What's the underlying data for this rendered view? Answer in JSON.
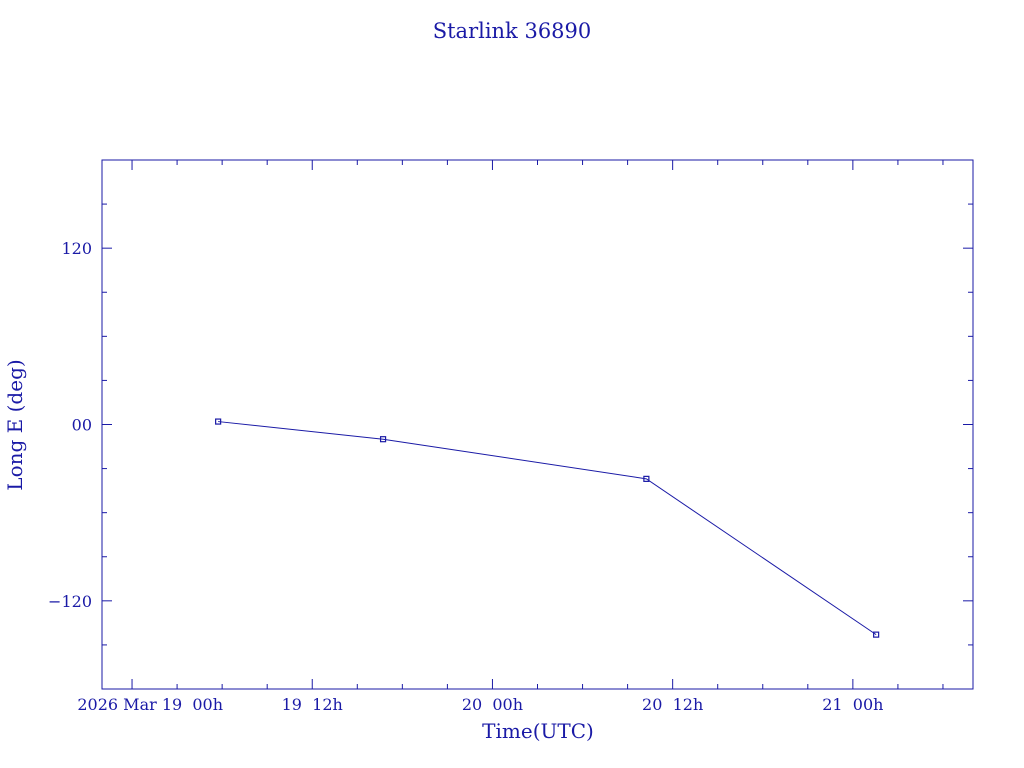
{
  "chart_data": {
    "type": "line",
    "title": "Starlink 36890",
    "xlabel": "Time(UTC)",
    "ylabel": "Long E (deg)",
    "x_ticks": [
      {
        "label": "2026 Mar 19  00h",
        "value": "2026-03-19T00:00Z"
      },
      {
        "label": "19  12h",
        "value": "2026-03-19T12:00Z"
      },
      {
        "label": "20  00h",
        "value": "2026-03-20T00:00Z"
      },
      {
        "label": "20  12h",
        "value": "2026-03-20T12:00Z"
      },
      {
        "label": "21  00h",
        "value": "2026-03-21T00:00Z"
      }
    ],
    "y_ticks": [
      {
        "label": "120",
        "value": 120
      },
      {
        "label": "00",
        "value": 0
      },
      {
        "label": "−120",
        "value": -120
      }
    ],
    "xlim": [
      "2026-03-18T22:00Z",
      "2026-03-21T08:00Z"
    ],
    "ylim": [
      -180,
      180
    ],
    "series": [
      {
        "x": [
          "2026-03-19T05:44Z",
          "2026-03-19T16:43Z",
          "2026-03-20T10:15Z",
          "2026-03-21T01:33Z"
        ],
        "y": [
          2,
          -10,
          -37,
          -143
        ]
      }
    ],
    "grid": false,
    "color": "#1a1aa6"
  }
}
